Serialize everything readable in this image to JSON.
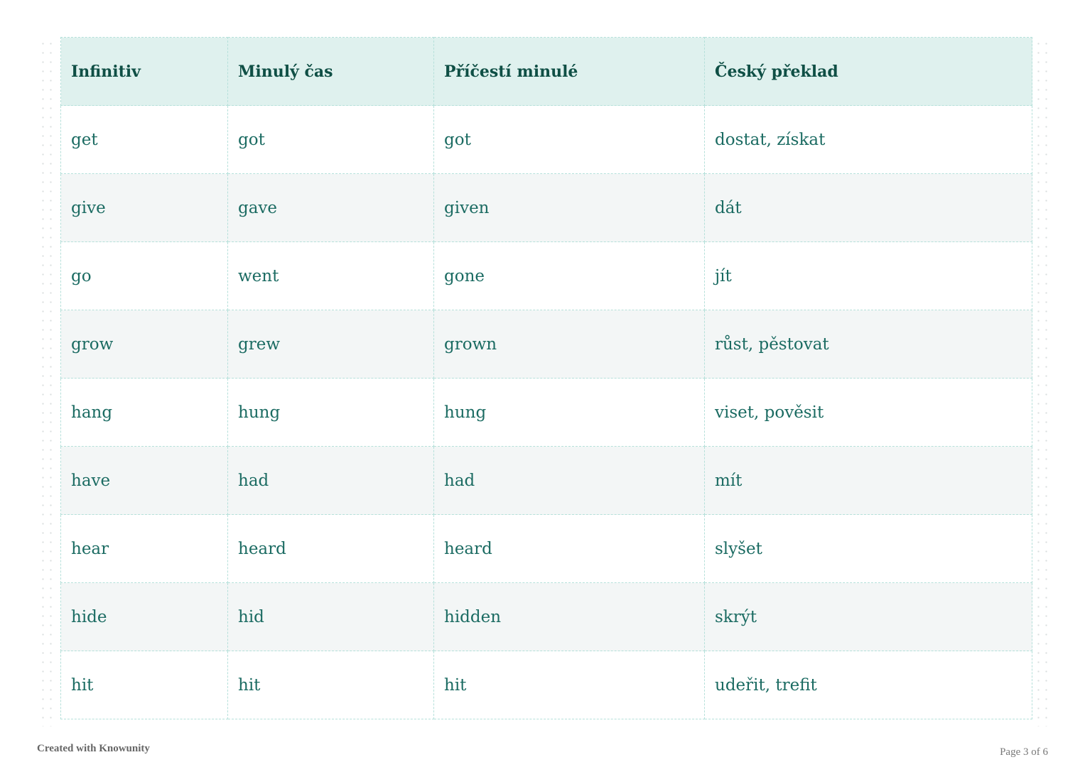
{
  "table": {
    "headers": [
      "Infinitiv",
      "Minulý čas",
      "Příčestí minulé",
      "Český překlad"
    ],
    "rows": [
      [
        "get",
        "got",
        "got",
        "dostat, získat"
      ],
      [
        "give",
        "gave",
        "given",
        "dát"
      ],
      [
        "go",
        "went",
        "gone",
        "jít"
      ],
      [
        "grow",
        "grew",
        "grown",
        "růst, pěstovat"
      ],
      [
        "hang",
        "hung",
        "hung",
        "viset, pověsit"
      ],
      [
        "have",
        "had",
        "had",
        "mít"
      ],
      [
        "hear",
        "heard",
        "heard",
        "slyšet"
      ],
      [
        "hide",
        "hid",
        "hidden",
        "skrýt"
      ],
      [
        "hit",
        "hit",
        "hit",
        "udeřit, trefit"
      ]
    ]
  },
  "footer": {
    "created": "Created with Knowunity",
    "page": "Page 3 of 6"
  },
  "colors": {
    "header_bg": "#dff1ee",
    "text": "#1b6b62",
    "border": "#b5e0da"
  }
}
